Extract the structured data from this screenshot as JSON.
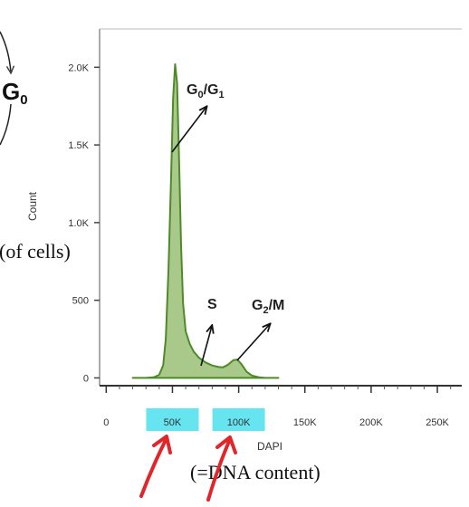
{
  "chart_data": {
    "type": "area",
    "title": "",
    "xlabel": "DAPI",
    "ylabel": "Count",
    "xlim": [
      -5000,
      265000
    ],
    "ylim": [
      -50,
      2200
    ],
    "x_ticks": [
      0,
      50000,
      100000,
      150000,
      200000,
      250000
    ],
    "x_tick_labels": [
      "0",
      "50K",
      "100K",
      "150K",
      "200K",
      "250K"
    ],
    "highlighted_x_ticks": [
      "50K",
      "100K"
    ],
    "y_ticks": [
      0,
      500,
      1000,
      1500,
      2000
    ],
    "y_tick_labels": [
      "0",
      "500",
      "1.0K",
      "1.5K",
      "2.0K"
    ],
    "grid": false,
    "fill_color": "#a9c98a",
    "line_color": "#4f8a2a",
    "highlight_color": "#66e4f0",
    "arrow_color": "#e0262a",
    "x": [
      20000,
      30000,
      36000,
      40000,
      43000,
      45000,
      47000,
      49000,
      50500,
      52000,
      53500,
      55000,
      56500,
      58000,
      60000,
      63000,
      66000,
      70000,
      75000,
      80000,
      85000,
      88000,
      92000,
      96000,
      99000,
      102000,
      106000,
      110000,
      115000,
      120000,
      130000
    ],
    "y": [
      0,
      0,
      5,
      20,
      80,
      250,
      700,
      1300,
      1800,
      2020,
      1900,
      1400,
      850,
      480,
      300,
      220,
      170,
      130,
      100,
      80,
      70,
      68,
      85,
      115,
      118,
      90,
      40,
      15,
      5,
      0,
      0
    ],
    "annotations": [
      {
        "label": "G",
        "sub": "0",
        "label2": "/G",
        "sub2": "1"
      },
      {
        "label": "S"
      },
      {
        "label": "G",
        "sub": "2",
        "label2": "/M"
      }
    ]
  },
  "side_text": {
    "g0_letter": "G",
    "g0_sub": "0",
    "of_cells": "(of cells)",
    "dna_content": "(=DNA content)"
  }
}
